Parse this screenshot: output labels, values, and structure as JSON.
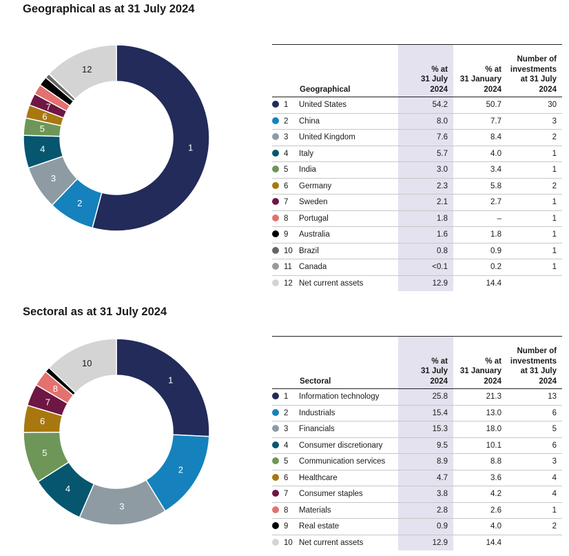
{
  "charts": [
    {
      "id": "geo",
      "title": "Geographical as at 31 July 2024",
      "table": {
        "label_header": "Geographical",
        "col1_header": [
          "% at",
          "31 July",
          "2024"
        ],
        "col2_header": [
          "% at",
          "31 January",
          "2024"
        ],
        "col3_header": [
          "Number of",
          "investments",
          "at 31 July",
          "2024"
        ]
      },
      "rows": [
        {
          "n": "1",
          "label": "United States",
          "jul": "54.2",
          "jan": "50.7",
          "count": "30",
          "value": 54.2,
          "color": "#222b59"
        },
        {
          "n": "2",
          "label": "China",
          "jul": "8.0",
          "jan": "7.7",
          "count": "3",
          "value": 8.0,
          "color": "#1582bd"
        },
        {
          "n": "3",
          "label": "United Kingdom",
          "jul": "7.6",
          "jan": "8.4",
          "count": "2",
          "value": 7.6,
          "color": "#8e9ba3"
        },
        {
          "n": "4",
          "label": "Italy",
          "jul": "5.7",
          "jan": "4.0",
          "count": "1",
          "value": 5.7,
          "color": "#05566e"
        },
        {
          "n": "5",
          "label": "India",
          "jul": "3.0",
          "jan": "3.4",
          "count": "1",
          "value": 3.0,
          "color": "#6e9658"
        },
        {
          "n": "6",
          "label": "Germany",
          "jul": "2.3",
          "jan": "5.8",
          "count": "2",
          "value": 2.3,
          "color": "#a8780f"
        },
        {
          "n": "7",
          "label": "Sweden",
          "jul": "2.1",
          "jan": "2.7",
          "count": "1",
          "value": 2.1,
          "color": "#6e1644"
        },
        {
          "n": "8",
          "label": "Portugal",
          "jul": "1.8",
          "jan": "–",
          "count": "1",
          "value": 1.8,
          "color": "#e3716f"
        },
        {
          "n": "9",
          "label": "Australia",
          "jul": "1.6",
          "jan": "1.8",
          "count": "1",
          "value": 1.6,
          "color": "#000000"
        },
        {
          "n": "10",
          "label": "Brazil",
          "jul": "0.8",
          "jan": "0.9",
          "count": "1",
          "value": 0.8,
          "color": "#666666"
        },
        {
          "n": "11",
          "label": "Canada",
          "jul": "<0.1",
          "jan": "0.2",
          "count": "1",
          "value": 0.05,
          "color": "#9a9a9a"
        },
        {
          "n": "12",
          "label": "Net current assets",
          "jul": "12.9",
          "jan": "14.4",
          "count": "",
          "value": 12.9,
          "color": "#d4d4d4"
        }
      ]
    },
    {
      "id": "sec",
      "title": "Sectoral as at 31 July 2024",
      "table": {
        "label_header": "Sectoral",
        "col1_header": [
          "% at",
          "31 July",
          "2024"
        ],
        "col2_header": [
          "% at",
          "31 January",
          "2024"
        ],
        "col3_header": [
          "Number of",
          "investments",
          "at 31 July",
          "2024"
        ]
      },
      "rows": [
        {
          "n": "1",
          "label": "Information technology",
          "jul": "25.8",
          "jan": "21.3",
          "count": "13",
          "value": 25.8,
          "color": "#222b59"
        },
        {
          "n": "2",
          "label": "Industrials",
          "jul": "15.4",
          "jan": "13.0",
          "count": "6",
          "value": 15.4,
          "color": "#1582bd"
        },
        {
          "n": "3",
          "label": "Financials",
          "jul": "15.3",
          "jan": "18.0",
          "count": "5",
          "value": 15.3,
          "color": "#8e9ba3"
        },
        {
          "n": "4",
          "label": "Consumer discretionary",
          "jul": "9.5",
          "jan": "10.1",
          "count": "6",
          "value": 9.5,
          "color": "#05566e"
        },
        {
          "n": "5",
          "label": "Communication services",
          "jul": "8.9",
          "jan": "8.8",
          "count": "3",
          "value": 8.9,
          "color": "#6e9658"
        },
        {
          "n": "6",
          "label": "Healthcare",
          "jul": "4.7",
          "jan": "3.6",
          "count": "4",
          "value": 4.7,
          "color": "#a8780f"
        },
        {
          "n": "7",
          "label": "Consumer staples",
          "jul": "3.8",
          "jan": "4.2",
          "count": "4",
          "value": 3.8,
          "color": "#6e1644"
        },
        {
          "n": "8",
          "label": "Materials",
          "jul": "2.8",
          "jan": "2.6",
          "count": "1",
          "value": 2.8,
          "color": "#e3716f"
        },
        {
          "n": "9",
          "label": "Real estate",
          "jul": "0.9",
          "jan": "4.0",
          "count": "2",
          "value": 0.9,
          "color": "#000000"
        },
        {
          "n": "10",
          "label": "Net current assets",
          "jul": "12.9",
          "jan": "14.4",
          "count": "",
          "value": 12.9,
          "color": "#d4d4d4"
        }
      ]
    }
  ],
  "chart_data": [
    {
      "type": "pie",
      "title": "Geographical as at 31 July 2024",
      "categories": [
        "United States",
        "China",
        "United Kingdom",
        "Italy",
        "India",
        "Germany",
        "Sweden",
        "Portugal",
        "Australia",
        "Brazil",
        "Canada",
        "Net current assets"
      ],
      "values": [
        54.2,
        8.0,
        7.6,
        5.7,
        3.0,
        2.3,
        2.1,
        1.8,
        1.6,
        0.8,
        0.05,
        12.9
      ],
      "series": [
        {
          "name": "% at 31 July 2024",
          "values": [
            54.2,
            8.0,
            7.6,
            5.7,
            3.0,
            2.3,
            2.1,
            1.8,
            1.6,
            0.8,
            0.05,
            12.9
          ]
        },
        {
          "name": "% at 31 January 2024",
          "values": [
            50.7,
            7.7,
            8.4,
            4.0,
            3.4,
            5.8,
            2.7,
            null,
            1.8,
            0.9,
            0.2,
            14.4
          ]
        },
        {
          "name": "Number of investments at 31 July 2024",
          "values": [
            30,
            3,
            2,
            1,
            1,
            2,
            1,
            1,
            1,
            1,
            1,
            null
          ]
        }
      ],
      "donut": true
    },
    {
      "type": "pie",
      "title": "Sectoral as at 31 July 2024",
      "categories": [
        "Information technology",
        "Industrials",
        "Financials",
        "Consumer discretionary",
        "Communication services",
        "Healthcare",
        "Consumer staples",
        "Materials",
        "Real estate",
        "Net current assets"
      ],
      "values": [
        25.8,
        15.4,
        15.3,
        9.5,
        8.9,
        4.7,
        3.8,
        2.8,
        0.9,
        12.9
      ],
      "series": [
        {
          "name": "% at 31 July 2024",
          "values": [
            25.8,
            15.4,
            15.3,
            9.5,
            8.9,
            4.7,
            3.8,
            2.8,
            0.9,
            12.9
          ]
        },
        {
          "name": "% at 31 January 2024",
          "values": [
            21.3,
            13.0,
            18.0,
            10.1,
            8.8,
            3.6,
            4.2,
            2.6,
            4.0,
            14.4
          ]
        },
        {
          "name": "Number of investments at 31 July 2024",
          "values": [
            13,
            6,
            5,
            6,
            3,
            4,
            4,
            1,
            2,
            null
          ]
        }
      ],
      "donut": true
    }
  ]
}
